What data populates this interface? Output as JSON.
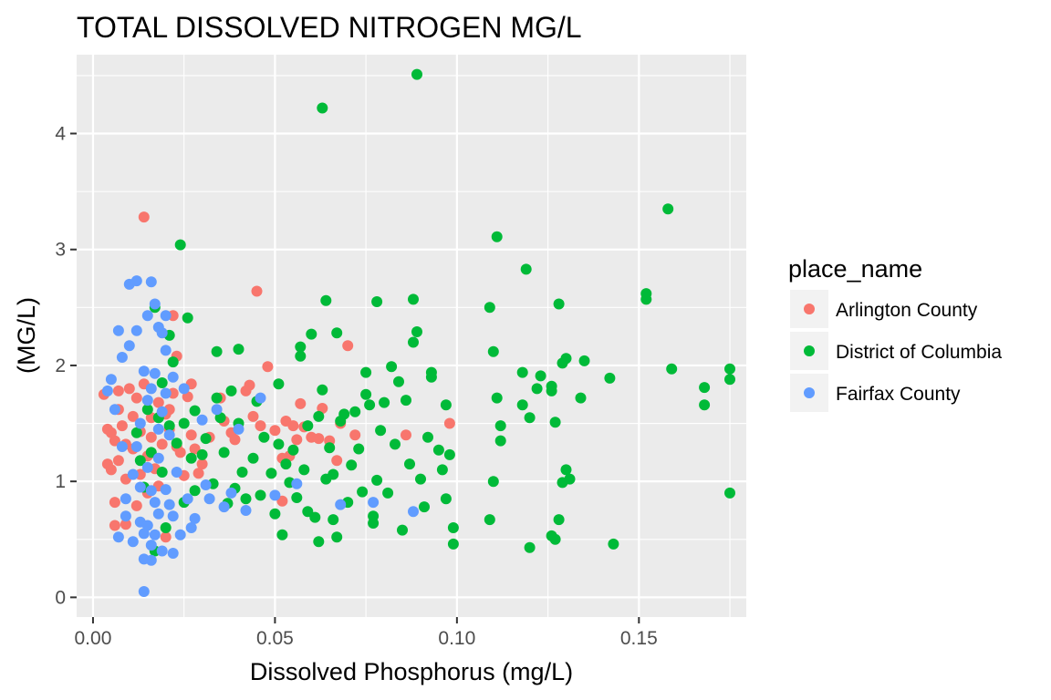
{
  "chart_data": {
    "type": "scatter",
    "title": "TOTAL DISSOLVED NITROGEN MG/L",
    "xlabel": "Dissolved Phosphorus (mg/L)",
    "ylabel": "(MG/L)",
    "xlim": [
      -0.0045,
      0.1795
    ],
    "ylim": [
      -0.17,
      4.68
    ],
    "x_ticks": [
      0.0,
      0.05,
      0.1,
      0.15
    ],
    "x_tick_labels": [
      "0.00",
      "0.05",
      "0.10",
      "0.15"
    ],
    "y_ticks": [
      0,
      1,
      2,
      3,
      4
    ],
    "y_tick_labels": [
      "0",
      "1",
      "2",
      "3",
      "4"
    ],
    "grid": true,
    "legend": {
      "title": "place_name",
      "placement": "right"
    },
    "series": [
      {
        "name": "Arlington County",
        "color": "#F8766D",
        "points": [
          [
            0.003,
            1.75
          ],
          [
            0.004,
            1.45
          ],
          [
            0.004,
            1.15
          ],
          [
            0.005,
            1.42
          ],
          [
            0.005,
            1.1
          ],
          [
            0.006,
            1.35
          ],
          [
            0.006,
            0.62
          ],
          [
            0.006,
            0.82
          ],
          [
            0.007,
            1.62
          ],
          [
            0.007,
            1.78
          ],
          [
            0.007,
            1.18
          ],
          [
            0.008,
            1.48
          ],
          [
            0.009,
            1.02
          ],
          [
            0.009,
            1.32
          ],
          [
            0.009,
            0.63
          ],
          [
            0.01,
            1.8
          ],
          [
            0.011,
            1.56
          ],
          [
            0.011,
            1.28
          ],
          [
            0.012,
            1.72
          ],
          [
            0.012,
            0.79
          ],
          [
            0.013,
            1.06
          ],
          [
            0.013,
            1.43
          ],
          [
            0.014,
            3.28
          ],
          [
            0.014,
            1.84
          ],
          [
            0.015,
            1.22
          ],
          [
            0.015,
            0.9
          ],
          [
            0.016,
            1.55
          ],
          [
            0.016,
            1.38
          ],
          [
            0.017,
            1.11
          ],
          [
            0.018,
            1.68
          ],
          [
            0.018,
            0.96
          ],
          [
            0.019,
            1.32
          ],
          [
            0.02,
            1.58
          ],
          [
            0.02,
            0.52
          ],
          [
            0.021,
            1.62
          ],
          [
            0.021,
            1.45
          ],
          [
            0.022,
            2.43
          ],
          [
            0.022,
            1.76
          ],
          [
            0.023,
            2.08
          ],
          [
            0.023,
            1.3
          ],
          [
            0.024,
            1.25
          ],
          [
            0.025,
            1.05
          ],
          [
            0.026,
            1.73
          ],
          [
            0.027,
            1.4
          ],
          [
            0.027,
            1.84
          ],
          [
            0.028,
            1.28
          ],
          [
            0.029,
            1.07
          ],
          [
            0.03,
            1.15
          ],
          [
            0.032,
            1.38
          ],
          [
            0.035,
            1.72
          ],
          [
            0.036,
            1.52
          ],
          [
            0.038,
            1.42
          ],
          [
            0.039,
            1.36
          ],
          [
            0.042,
            1.78
          ],
          [
            0.043,
            1.83
          ],
          [
            0.044,
            1.56
          ],
          [
            0.045,
            2.64
          ],
          [
            0.046,
            1.48
          ],
          [
            0.048,
            1.99
          ],
          [
            0.05,
            1.44
          ],
          [
            0.052,
            1.2
          ],
          [
            0.053,
            1.52
          ],
          [
            0.054,
            1.22
          ],
          [
            0.055,
            1.48
          ],
          [
            0.056,
            1.36
          ],
          [
            0.057,
            1.67
          ],
          [
            0.058,
            1.47
          ],
          [
            0.06,
            1.38
          ],
          [
            0.062,
            1.37
          ],
          [
            0.063,
            1.63
          ],
          [
            0.065,
            1.35
          ],
          [
            0.067,
            1.18
          ],
          [
            0.068,
            1.5
          ],
          [
            0.07,
            2.17
          ],
          [
            0.072,
            1.4
          ],
          [
            0.086,
            1.4
          ],
          [
            0.098,
            1.5
          ],
          [
            0.052,
            0.83
          ]
        ]
      },
      {
        "name": "District of Columbia",
        "color": "#00BA38",
        "points": [
          [
            0.012,
            1.42
          ],
          [
            0.013,
            1.18
          ],
          [
            0.014,
            0.95
          ],
          [
            0.015,
            1.62
          ],
          [
            0.016,
            1.25
          ],
          [
            0.017,
            2.5
          ],
          [
            0.017,
            0.4
          ],
          [
            0.018,
            1.55
          ],
          [
            0.019,
            1.85
          ],
          [
            0.019,
            1.08
          ],
          [
            0.02,
            0.6
          ],
          [
            0.021,
            2.26
          ],
          [
            0.021,
            1.48
          ],
          [
            0.022,
            2.03
          ],
          [
            0.023,
            1.33
          ],
          [
            0.024,
            3.04
          ],
          [
            0.025,
            0.82
          ],
          [
            0.025,
            1.5
          ],
          [
            0.026,
            2.41
          ],
          [
            0.027,
            1.2
          ],
          [
            0.028,
            0.92
          ],
          [
            0.028,
            1.61
          ],
          [
            0.03,
            1.23
          ],
          [
            0.031,
            1.37
          ],
          [
            0.033,
            0.98
          ],
          [
            0.034,
            1.72
          ],
          [
            0.034,
            2.12
          ],
          [
            0.035,
            1.55
          ],
          [
            0.036,
            1.25
          ],
          [
            0.037,
            0.81
          ],
          [
            0.038,
            1.78
          ],
          [
            0.039,
            0.94
          ],
          [
            0.04,
            1.5
          ],
          [
            0.04,
            2.14
          ],
          [
            0.041,
            1.08
          ],
          [
            0.042,
            0.85
          ],
          [
            0.044,
            1.2
          ],
          [
            0.045,
            1.69
          ],
          [
            0.046,
            0.88
          ],
          [
            0.047,
            1.38
          ],
          [
            0.049,
            1.07
          ],
          [
            0.05,
            0.72
          ],
          [
            0.051,
            1.32
          ],
          [
            0.051,
            1.84
          ],
          [
            0.052,
            0.54
          ],
          [
            0.053,
            1.15
          ],
          [
            0.054,
            0.99
          ],
          [
            0.055,
            1.27
          ],
          [
            0.056,
            0.86
          ],
          [
            0.057,
            2.08
          ],
          [
            0.057,
            2.16
          ],
          [
            0.058,
            1.1
          ],
          [
            0.059,
            0.74
          ],
          [
            0.059,
            1.48
          ],
          [
            0.06,
            2.27
          ],
          [
            0.061,
            0.69
          ],
          [
            0.062,
            1.56
          ],
          [
            0.062,
            0.48
          ],
          [
            0.063,
            1.79
          ],
          [
            0.063,
            4.22
          ],
          [
            0.064,
            2.56
          ],
          [
            0.064,
            1.02
          ],
          [
            0.065,
            1.29
          ],
          [
            0.066,
            0.67
          ],
          [
            0.066,
            1.06
          ],
          [
            0.067,
            0.52
          ],
          [
            0.067,
            2.28
          ],
          [
            0.068,
            1.52
          ],
          [
            0.069,
            1.58
          ],
          [
            0.07,
            0.82
          ],
          [
            0.071,
            1.14
          ],
          [
            0.072,
            1.6
          ],
          [
            0.073,
            1.28
          ],
          [
            0.074,
            0.91
          ],
          [
            0.075,
            1.75
          ],
          [
            0.075,
            1.94
          ],
          [
            0.076,
            1.66
          ],
          [
            0.077,
            0.64
          ],
          [
            0.077,
            0.7
          ],
          [
            0.078,
            2.55
          ],
          [
            0.078,
            1.01
          ],
          [
            0.079,
            1.44
          ],
          [
            0.08,
            1.68
          ],
          [
            0.081,
            0.9
          ],
          [
            0.082,
            1.99
          ],
          [
            0.083,
            1.32
          ],
          [
            0.084,
            1.86
          ],
          [
            0.085,
            0.58
          ],
          [
            0.086,
            1.7
          ],
          [
            0.087,
            1.15
          ],
          [
            0.088,
            2.57
          ],
          [
            0.088,
            2.2
          ],
          [
            0.089,
            4.51
          ],
          [
            0.089,
            2.29
          ],
          [
            0.09,
            1.02
          ],
          [
            0.091,
            0.78
          ],
          [
            0.092,
            1.38
          ],
          [
            0.093,
            1.94
          ],
          [
            0.093,
            1.9
          ],
          [
            0.095,
            1.27
          ],
          [
            0.096,
            1.1
          ],
          [
            0.097,
            1.66
          ],
          [
            0.097,
            0.85
          ],
          [
            0.098,
            1.23
          ],
          [
            0.099,
            0.6
          ],
          [
            0.099,
            0.46
          ],
          [
            0.109,
            0.67
          ],
          [
            0.109,
            2.5
          ],
          [
            0.11,
            2.12
          ],
          [
            0.11,
            1.0
          ],
          [
            0.111,
            3.11
          ],
          [
            0.111,
            1.72
          ],
          [
            0.112,
            1.48
          ],
          [
            0.112,
            1.35
          ],
          [
            0.118,
            1.94
          ],
          [
            0.118,
            1.66
          ],
          [
            0.119,
            2.83
          ],
          [
            0.12,
            0.43
          ],
          [
            0.12,
            1.55
          ],
          [
            0.122,
            1.8
          ],
          [
            0.123,
            1.91
          ],
          [
            0.126,
            1.82
          ],
          [
            0.126,
            1.78
          ],
          [
            0.126,
            0.53
          ],
          [
            0.127,
            0.5
          ],
          [
            0.127,
            1.51
          ],
          [
            0.128,
            0.67
          ],
          [
            0.128,
            2.53
          ],
          [
            0.129,
            2.02
          ],
          [
            0.129,
            0.99
          ],
          [
            0.13,
            1.1
          ],
          [
            0.13,
            2.06
          ],
          [
            0.131,
            1.02
          ],
          [
            0.134,
            1.72
          ],
          [
            0.135,
            2.04
          ],
          [
            0.142,
            1.89
          ],
          [
            0.143,
            0.46
          ],
          [
            0.152,
            2.62
          ],
          [
            0.152,
            2.57
          ],
          [
            0.158,
            3.35
          ],
          [
            0.159,
            1.97
          ],
          [
            0.168,
            1.81
          ],
          [
            0.168,
            1.66
          ],
          [
            0.175,
            1.97
          ],
          [
            0.175,
            1.88
          ],
          [
            0.175,
            0.9
          ]
        ]
      },
      {
        "name": "Fairfax County",
        "color": "#619CFF",
        "points": [
          [
            0.004,
            1.78
          ],
          [
            0.005,
            1.88
          ],
          [
            0.006,
            1.62
          ],
          [
            0.007,
            2.3
          ],
          [
            0.007,
            0.52
          ],
          [
            0.008,
            2.07
          ],
          [
            0.008,
            1.3
          ],
          [
            0.009,
            0.85
          ],
          [
            0.009,
            0.7
          ],
          [
            0.01,
            2.7
          ],
          [
            0.01,
            2.17
          ],
          [
            0.011,
            1.06
          ],
          [
            0.011,
            0.48
          ],
          [
            0.012,
            2.73
          ],
          [
            0.012,
            2.3
          ],
          [
            0.012,
            1.3
          ],
          [
            0.013,
            1.5
          ],
          [
            0.013,
            0.95
          ],
          [
            0.013,
            0.65
          ],
          [
            0.014,
            1.95
          ],
          [
            0.014,
            0.55
          ],
          [
            0.014,
            0.33
          ],
          [
            0.014,
            0.05
          ],
          [
            0.015,
            2.43
          ],
          [
            0.015,
            1.7
          ],
          [
            0.015,
            1.12
          ],
          [
            0.015,
            0.62
          ],
          [
            0.016,
            2.72
          ],
          [
            0.016,
            1.8
          ],
          [
            0.016,
            0.92
          ],
          [
            0.016,
            0.45
          ],
          [
            0.016,
            0.32
          ],
          [
            0.017,
            2.53
          ],
          [
            0.017,
            1.93
          ],
          [
            0.017,
            0.82
          ],
          [
            0.017,
            0.54
          ],
          [
            0.018,
            2.33
          ],
          [
            0.018,
            1.45
          ],
          [
            0.018,
            1.2
          ],
          [
            0.018,
            0.72
          ],
          [
            0.019,
            2.28
          ],
          [
            0.019,
            1.6
          ],
          [
            0.019,
            0.4
          ],
          [
            0.02,
            2.43
          ],
          [
            0.02,
            2.13
          ],
          [
            0.02,
            1.76
          ],
          [
            0.02,
            0.93
          ],
          [
            0.021,
            1.4
          ],
          [
            0.021,
            0.8
          ],
          [
            0.022,
            1.9
          ],
          [
            0.022,
            0.7
          ],
          [
            0.022,
            0.38
          ],
          [
            0.023,
            1.08
          ],
          [
            0.024,
            0.54
          ],
          [
            0.025,
            1.8
          ],
          [
            0.026,
            0.85
          ],
          [
            0.027,
            0.6
          ],
          [
            0.028,
            0.68
          ],
          [
            0.03,
            1.53
          ],
          [
            0.031,
            0.97
          ],
          [
            0.032,
            0.85
          ],
          [
            0.034,
            1.62
          ],
          [
            0.036,
            0.78
          ],
          [
            0.038,
            0.9
          ],
          [
            0.04,
            1.45
          ],
          [
            0.042,
            0.75
          ],
          [
            0.046,
            1.72
          ],
          [
            0.05,
            0.88
          ],
          [
            0.056,
            0.98
          ],
          [
            0.068,
            0.8
          ],
          [
            0.077,
            0.82
          ],
          [
            0.088,
            0.74
          ]
        ]
      }
    ]
  }
}
